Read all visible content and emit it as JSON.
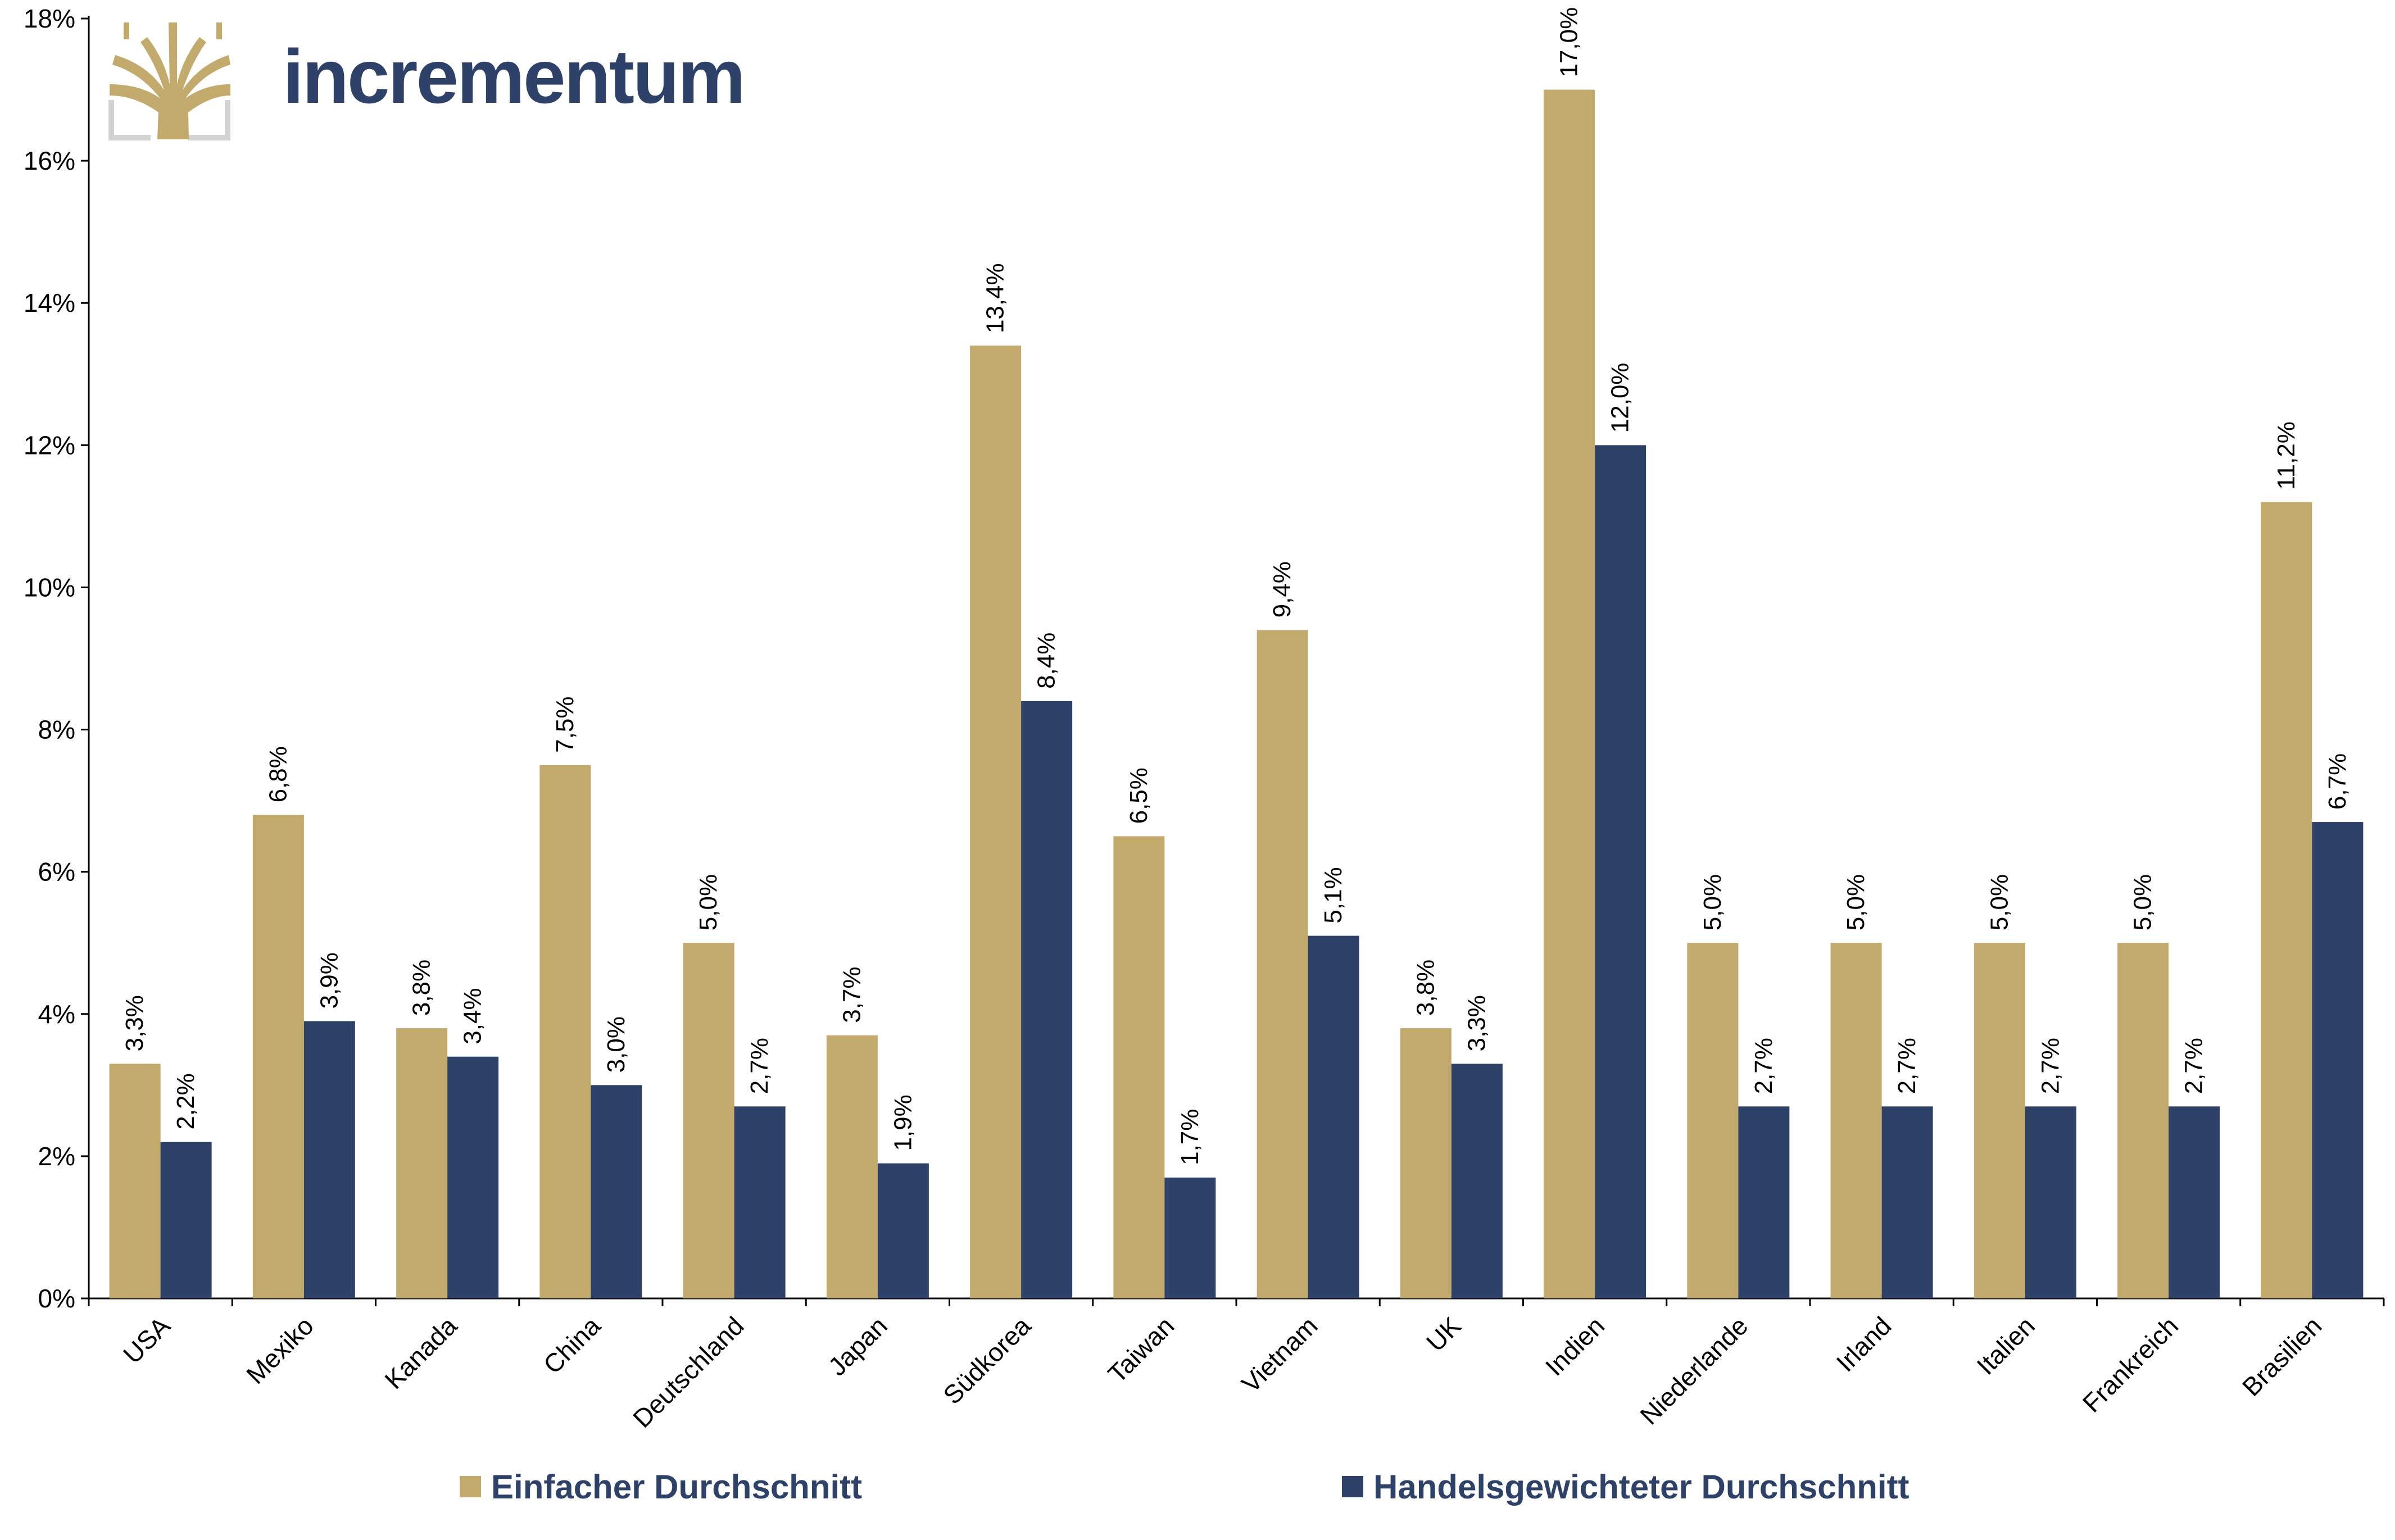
{
  "brand": {
    "name": "incrementum",
    "logo_icon": "tree-icon",
    "colors": {
      "gold": "#c2a96c",
      "navy": "#2e4168",
      "frame": "#d3d3d3"
    }
  },
  "legend": {
    "placement": "bottom",
    "items": [
      {
        "label": "Einfacher Durchschnitt",
        "color": "#c2a96c"
      },
      {
        "label": "Handelsgewichteter Durchschnitt",
        "color": "#2e4168"
      }
    ]
  },
  "chart_data": {
    "type": "bar",
    "title": "",
    "xlabel": "",
    "ylabel": "",
    "ylim": [
      0,
      18
    ],
    "yticks": [
      0,
      2,
      4,
      6,
      8,
      10,
      12,
      14,
      16,
      18
    ],
    "ytick_labels": [
      "0%",
      "2%",
      "4%",
      "6%",
      "8%",
      "10%",
      "12%",
      "14%",
      "16%",
      "18%"
    ],
    "grid": false,
    "categories": [
      "USA",
      "Mexiko",
      "Kanada",
      "China",
      "Deutschland",
      "Japan",
      "Südkorea",
      "Taiwan",
      "Vietnam",
      "UK",
      "Indien",
      "Niederlande",
      "Irland",
      "Italien",
      "Frankreich",
      "Brasilien"
    ],
    "series": [
      {
        "name": "Einfacher Durchschnitt",
        "color": "#c2a96c",
        "values": [
          3.3,
          6.8,
          3.8,
          7.5,
          5.0,
          3.7,
          13.4,
          6.5,
          9.4,
          3.8,
          17.0,
          5.0,
          5.0,
          5.0,
          5.0,
          11.2
        ],
        "labels": [
          "3,3%",
          "6,8%",
          "3,8%",
          "7,5%",
          "5,0%",
          "3,7%",
          "13,4%",
          "6,5%",
          "9,4%",
          "3,8%",
          "17,0%",
          "5,0%",
          "5,0%",
          "5,0%",
          "5,0%",
          "11,2%"
        ]
      },
      {
        "name": "Handelsgewichteter Durchschnitt",
        "color": "#2e4168",
        "values": [
          2.2,
          3.9,
          3.4,
          3.0,
          2.7,
          1.9,
          8.4,
          1.7,
          5.1,
          3.3,
          12.0,
          2.7,
          2.7,
          2.7,
          2.7,
          6.7
        ],
        "labels": [
          "2,2%",
          "3,9%",
          "3,4%",
          "3,0%",
          "2,7%",
          "1,9%",
          "8,4%",
          "1,7%",
          "5,1%",
          "3,3%",
          "12,0%",
          "2,7%",
          "2,7%",
          "2,7%",
          "2,7%",
          "6,7%"
        ]
      }
    ]
  }
}
